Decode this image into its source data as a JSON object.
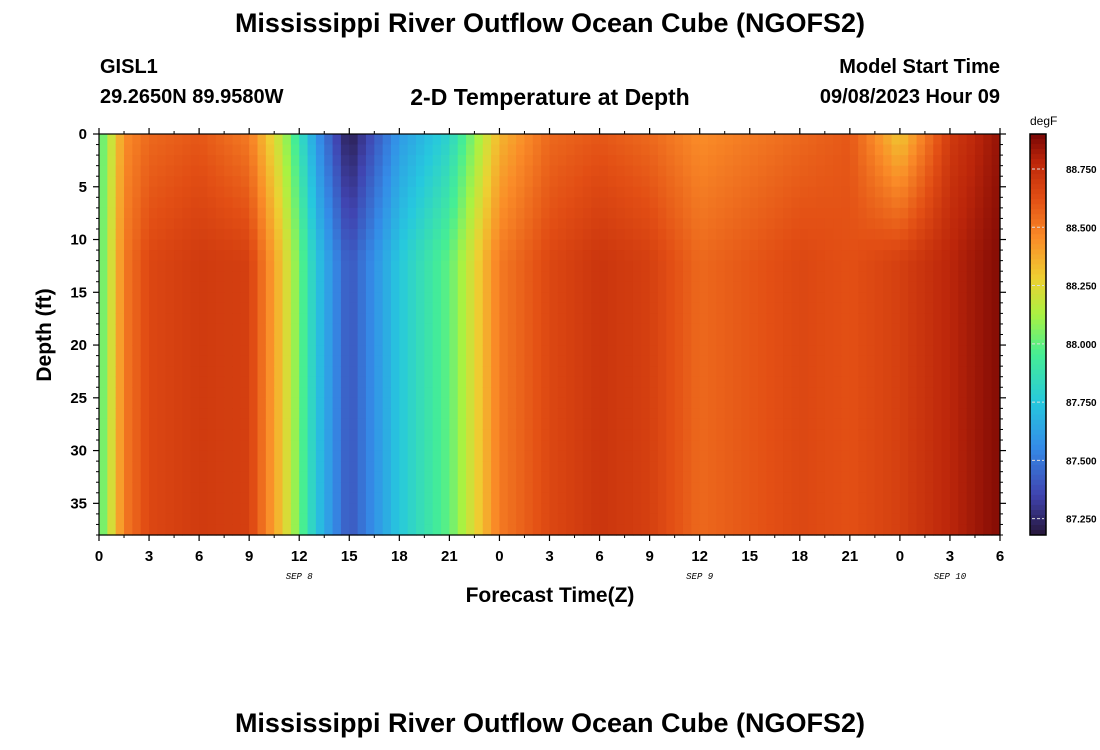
{
  "header": {
    "title": "Mississippi River Outflow Ocean Cube (NGOFS2)",
    "station_id": "GISL1",
    "coordinates": "29.2650N  89.9580W",
    "subtitle": "2-D Temperature at Depth",
    "model_start_label": "Model Start Time",
    "model_start_value": "09/08/2023 Hour 09"
  },
  "footer": {
    "title": "Mississippi River Outflow Ocean Cube (NGOFS2)"
  },
  "chart_data": {
    "type": "heatmap",
    "title": "2-D Temperature at Depth",
    "xlabel": "Forecast Time(Z)",
    "ylabel": "Depth (ft)",
    "x_tick_labels": [
      "0",
      "3",
      "6",
      "9",
      "12",
      "15",
      "18",
      "21",
      "0",
      "3",
      "6",
      "9",
      "12",
      "15",
      "18",
      "21",
      "0",
      "3",
      "6"
    ],
    "x_range_hours": [
      0,
      54
    ],
    "x_day_labels": [
      {
        "label": "SEP 8",
        "hour": 12
      },
      {
        "label": "SEP 9",
        "hour": 36
      },
      {
        "label": "SEP 10",
        "hour": 51
      }
    ],
    "y_ticks": [
      0,
      5,
      10,
      15,
      20,
      25,
      30,
      35
    ],
    "y_range_ft": [
      0,
      38
    ],
    "colorbar": {
      "unit": "degF",
      "range": [
        87.18,
        88.9
      ],
      "ticks": [
        87.25,
        87.5,
        87.75,
        88.0,
        88.25,
        88.5,
        88.75
      ],
      "tick_labels": [
        "87.250",
        "87.500",
        "87.750",
        "88.000",
        "88.250",
        "88.500",
        "88.750"
      ]
    },
    "surface_profile_hours": [
      0,
      1.5,
      3,
      6,
      9,
      11,
      13,
      15,
      18,
      21,
      24,
      27,
      30,
      33,
      36,
      39,
      42,
      45,
      48,
      51,
      54
    ],
    "surface_profile_degF": [
      87.95,
      88.45,
      88.55,
      88.6,
      88.5,
      88.15,
      87.6,
      87.2,
      87.6,
      87.8,
      88.35,
      88.55,
      88.6,
      88.55,
      88.45,
      88.5,
      88.55,
      88.6,
      88.3,
      88.7,
      88.85
    ],
    "deep_profile_degF": [
      87.95,
      88.5,
      88.65,
      88.7,
      88.68,
      88.3,
      87.75,
      87.4,
      87.75,
      88.0,
      88.5,
      88.65,
      88.72,
      88.68,
      88.55,
      88.6,
      88.65,
      88.62,
      88.68,
      88.78,
      88.88
    ]
  }
}
